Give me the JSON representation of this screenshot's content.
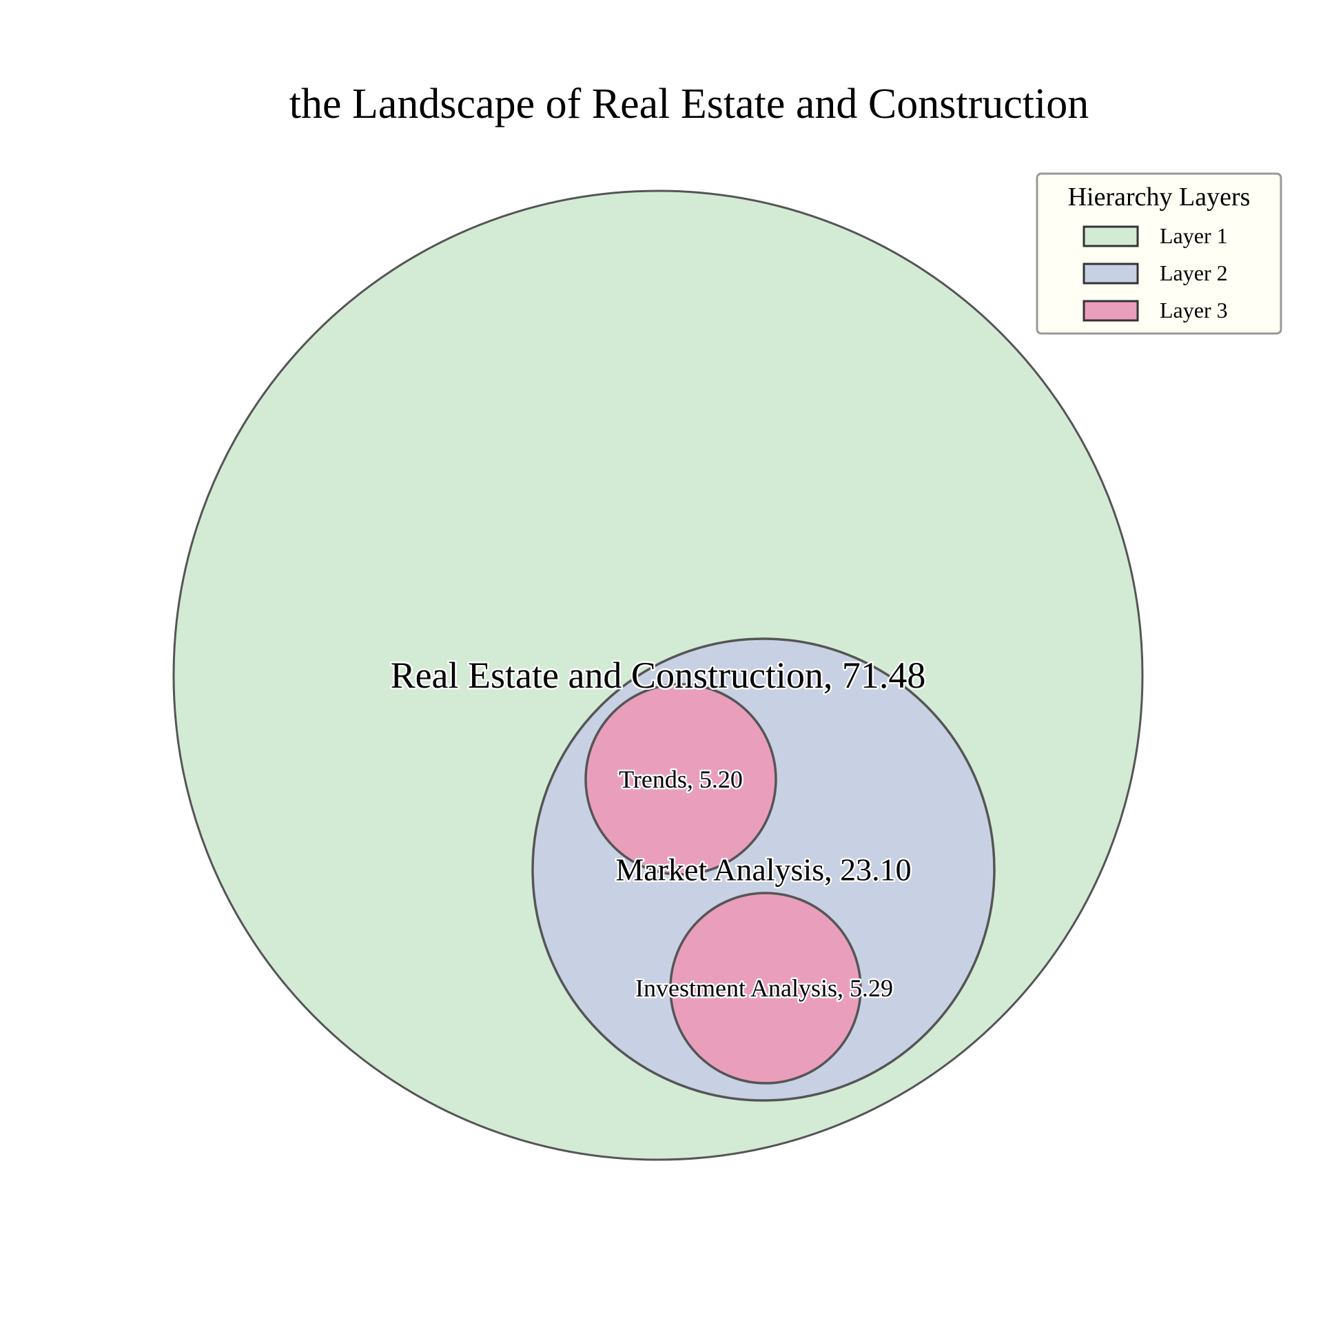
{
  "chart_data": {
    "type": "circle-packing",
    "title": "the Landscape of Real Estate and Construction",
    "nodes": [
      {
        "id": "root",
        "name": "Real Estate and Construction",
        "value": 71.48,
        "value_label": "71.48",
        "layer": 1,
        "parent": null
      },
      {
        "id": "market",
        "name": "Market Analysis",
        "value": 23.1,
        "value_label": "23.10",
        "layer": 2,
        "parent": "root"
      },
      {
        "id": "trends",
        "name": "Trends",
        "value": 5.2,
        "value_label": "5.20",
        "layer": 3,
        "parent": "market"
      },
      {
        "id": "investment",
        "name": "Investment Analysis",
        "value": 5.29,
        "value_label": "5.29",
        "layer": 3,
        "parent": "market"
      }
    ],
    "legend": {
      "title": "Hierarchy Layers",
      "position": "top-right",
      "entries": [
        {
          "label": "Layer 1",
          "color": "#d3ebd5"
        },
        {
          "label": "Layer 2",
          "color": "#c8d0e4"
        },
        {
          "label": "Layer 3",
          "color": "#e99fbc"
        }
      ]
    },
    "colors": {
      "layer_1": "#d3ebd5",
      "layer_2": "#c8d0e4",
      "layer_3": "#e99fbc",
      "circle_stroke": "#555555",
      "legend_background": "#fffff5",
      "legend_border": "#999999"
    }
  }
}
